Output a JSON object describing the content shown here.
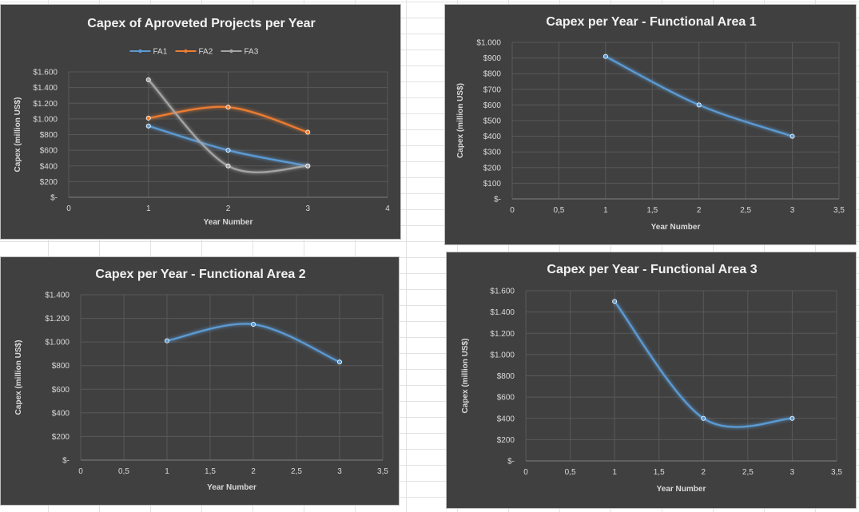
{
  "chart_data": [
    {
      "id": "all",
      "type": "scatter",
      "title": "Capex of Aproveted Projects per Year",
      "xlabel": "Year Number",
      "ylabel": "Capex (million US$)",
      "xlim": [
        0,
        4
      ],
      "xticks": [
        "0",
        "1",
        "2",
        "3",
        "4"
      ],
      "ylim": [
        0,
        1600
      ],
      "yticks": [
        "$-",
        "$200",
        "$400",
        "$600",
        "$800",
        "$1.000",
        "$1.200",
        "$1.400",
        "$1.600"
      ],
      "legend": "top",
      "series": [
        {
          "name": "FA1",
          "color": "#5b9bd5",
          "x": [
            1,
            2,
            3
          ],
          "y": [
            910,
            600,
            400
          ]
        },
        {
          "name": "FA2",
          "color": "#ed7d31",
          "x": [
            1,
            2,
            3
          ],
          "y": [
            1010,
            1150,
            830
          ]
        },
        {
          "name": "FA3",
          "color": "#a5a5a5",
          "x": [
            1,
            2,
            3
          ],
          "y": [
            1500,
            400,
            400
          ]
        }
      ]
    },
    {
      "id": "fa1",
      "type": "scatter",
      "title": "Capex per Year - Functional Area 1",
      "xlabel": "Year Number",
      "ylabel": "Capex (million US$)",
      "xlim": [
        0,
        3.5
      ],
      "xticks": [
        "0",
        "0,5",
        "1",
        "1,5",
        "2",
        "2,5",
        "3",
        "3,5"
      ],
      "ylim": [
        0,
        1000
      ],
      "yticks": [
        "$-",
        "$100",
        "$200",
        "$300",
        "$400",
        "$500",
        "$600",
        "$700",
        "$800",
        "$900",
        "$1.000"
      ],
      "legend": "none",
      "series": [
        {
          "color": "#5b9bd5",
          "x": [
            1,
            2,
            3
          ],
          "y": [
            910,
            600,
            400
          ]
        }
      ]
    },
    {
      "id": "fa2",
      "type": "scatter",
      "title": "Capex per Year - Functional Area 2",
      "xlabel": "Year Number",
      "ylabel": "Capex (million US$)",
      "xlim": [
        0,
        3.5
      ],
      "xticks": [
        "0",
        "0,5",
        "1",
        "1,5",
        "2",
        "2,5",
        "3",
        "3,5"
      ],
      "ylim": [
        0,
        1400
      ],
      "yticks": [
        "$-",
        "$200",
        "$400",
        "$600",
        "$800",
        "$1.000",
        "$1.200",
        "$1.400"
      ],
      "legend": "none",
      "series": [
        {
          "color": "#5b9bd5",
          "x": [
            1,
            2,
            3
          ],
          "y": [
            1010,
            1150,
            830
          ]
        }
      ]
    },
    {
      "id": "fa3",
      "type": "scatter",
      "title": "Capex per Year - Functional Area 3",
      "xlabel": "Year Number",
      "ylabel": "Capex (million US$)",
      "xlim": [
        0,
        3.5
      ],
      "xticks": [
        "0",
        "0,5",
        "1",
        "1,5",
        "2",
        "2,5",
        "3",
        "3,5"
      ],
      "ylim": [
        0,
        1600
      ],
      "yticks": [
        "$-",
        "$200",
        "$400",
        "$600",
        "$800",
        "$1.000",
        "$1.200",
        "$1.400",
        "$1.600"
      ],
      "legend": "none",
      "series": [
        {
          "color": "#5b9bd5",
          "x": [
            1,
            2,
            3
          ],
          "y": [
            1500,
            400,
            400
          ]
        }
      ]
    }
  ]
}
